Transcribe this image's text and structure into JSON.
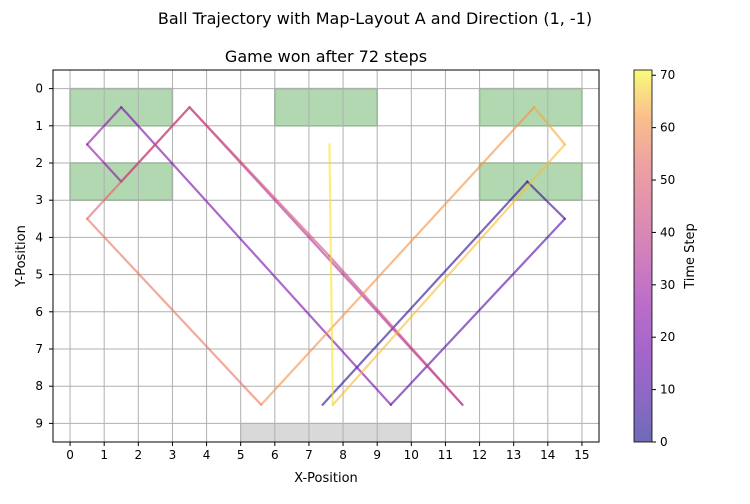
{
  "chart_data": {
    "type": "line",
    "suptitle": "Ball Trajectory with Map-Layout A and Direction (1, -1)",
    "title": "Game won after 72 steps",
    "xlabel": "X-Position",
    "ylabel": "Y-Position",
    "xlim": [
      -0.5,
      15.5
    ],
    "ylim": [
      9.5,
      -0.5
    ],
    "y_inverted": true,
    "grid": true,
    "x_ticks": [
      0,
      1,
      2,
      3,
      4,
      5,
      6,
      7,
      8,
      9,
      10,
      11,
      12,
      13,
      14,
      15
    ],
    "y_ticks": [
      0,
      1,
      2,
      3,
      4,
      5,
      6,
      7,
      8,
      9
    ],
    "colorbar": {
      "label": "Time Step",
      "range": [
        0,
        71
      ],
      "ticks": [
        0,
        10,
        20,
        30,
        40,
        50,
        60,
        70
      ],
      "colormap": "plasma",
      "alpha": 0.6
    },
    "blocks": [
      {
        "x": 0,
        "y": 0,
        "width": 3,
        "height": 1,
        "color": "#b2d8b2",
        "edge": "#77bb77"
      },
      {
        "x": 6,
        "y": 0,
        "width": 3,
        "height": 1,
        "color": "#b2d8b2",
        "edge": "#77bb77"
      },
      {
        "x": 12,
        "y": 0,
        "width": 3,
        "height": 1,
        "color": "#b2d8b2",
        "edge": "#77bb77"
      },
      {
        "x": 0,
        "y": 2,
        "width": 3,
        "height": 1,
        "color": "#b2d8b2",
        "edge": "#77bb77"
      },
      {
        "x": 12,
        "y": 2,
        "width": 3,
        "height": 1,
        "color": "#b2d8b2",
        "edge": "#77bb77"
      }
    ],
    "paddle": {
      "x": 5,
      "y": 9,
      "width": 5,
      "height": 0.5,
      "color": "#d9d9d9",
      "edge": "#bbbbbb"
    },
    "trajectory": {
      "x": [
        7.4,
        13.4,
        14.5,
        9.4,
        1.5,
        0.5,
        1.5,
        3.5,
        11.5,
        7.6,
        3.5,
        0.5,
        5.6,
        13.6,
        14.5,
        7.7,
        7.6
      ],
      "y": [
        8.5,
        2.5,
        3.5,
        8.5,
        0.5,
        1.5,
        2.5,
        0.5,
        8.5,
        4.5,
        0.5,
        3.5,
        8.5,
        0.5,
        1.5,
        8.5,
        1.5
      ],
      "t": [
        0,
        6,
        7,
        12,
        20,
        21,
        22,
        24,
        32,
        36,
        40,
        43,
        48,
        56,
        57,
        64,
        71
      ]
    }
  }
}
